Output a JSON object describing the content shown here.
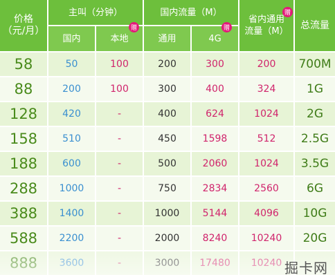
{
  "headers": {
    "price": "价格\n（元/月）",
    "calls_group": "主叫（分钟）",
    "data_group": "国内流量（M）",
    "provincial": "省内通用\n流量（M）",
    "total": "总流量",
    "sub_domestic": "国内",
    "sub_local": "本地",
    "sub_general": "通用",
    "sub_4g": "4G",
    "gift_badge": "赠"
  },
  "rows": [
    {
      "price": "58",
      "domestic": "50",
      "local": "100",
      "general": "200",
      "g4": "300",
      "provincial": "200",
      "total": "700M"
    },
    {
      "price": "88",
      "domestic": "200",
      "local": "100",
      "general": "300",
      "g4": "400",
      "provincial": "324",
      "total": "1G"
    },
    {
      "price": "128",
      "domestic": "420",
      "local": "-",
      "general": "400",
      "g4": "624",
      "provincial": "1024",
      "total": "2G"
    },
    {
      "price": "158",
      "domestic": "510",
      "local": "-",
      "general": "450",
      "g4": "1598",
      "provincial": "512",
      "total": "2.5G"
    },
    {
      "price": "188",
      "domestic": "600",
      "local": "-",
      "general": "500",
      "g4": "2060",
      "provincial": "1024",
      "total": "3.5G"
    },
    {
      "price": "288",
      "domestic": "1000",
      "local": "-",
      "general": "750",
      "g4": "2834",
      "provincial": "2560",
      "total": "6G"
    },
    {
      "price": "388",
      "domestic": "1400",
      "local": "-",
      "general": "1000",
      "g4": "5144",
      "provincial": "4096",
      "total": "10G"
    },
    {
      "price": "588",
      "domestic": "2200",
      "local": "-",
      "general": "2000",
      "g4": "8240",
      "provincial": "10240",
      "total": "20G"
    },
    {
      "price": "888",
      "domestic": "3600",
      "local": "-",
      "general": "3000",
      "g4": "17480",
      "provincial": "10240",
      "total": ""
    }
  ],
  "watermark": "掘卡网",
  "colors": {
    "header_green": "#6dbf3c",
    "row_light": "#e7f4d6",
    "row_lighter": "#f5faee",
    "price_green": "#4a8b1c",
    "blue": "#3a8fd0",
    "magenta": "#d0246c",
    "badge": "#e31a7a"
  }
}
